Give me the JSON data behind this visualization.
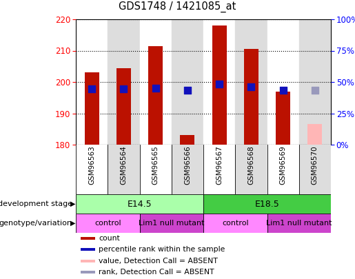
{
  "title": "GDS1748 / 1421085_at",
  "samples": [
    "GSM96563",
    "GSM96564",
    "GSM96565",
    "GSM96566",
    "GSM96567",
    "GSM96568",
    "GSM96569",
    "GSM96570"
  ],
  "count_values": [
    203.0,
    204.5,
    211.5,
    183.0,
    218.0,
    210.5,
    197.0,
    null
  ],
  "rank_values": [
    44.5,
    44.5,
    45.0,
    43.5,
    48.5,
    46.0,
    43.5,
    null
  ],
  "absent_count": [
    null,
    null,
    null,
    null,
    null,
    null,
    null,
    186.5
  ],
  "absent_rank": [
    null,
    null,
    null,
    null,
    null,
    null,
    null,
    43.5
  ],
  "ylim_left": [
    180,
    220
  ],
  "ylim_right": [
    0,
    100
  ],
  "yticks_left": [
    180,
    190,
    200,
    210,
    220
  ],
  "yticks_right": [
    0,
    25,
    50,
    75,
    100
  ],
  "ytick_labels_right": [
    "0%",
    "25%",
    "50%",
    "75%",
    "100%"
  ],
  "bar_color": "#BB1100",
  "absent_bar_color": "#FFB6B6",
  "rank_color": "#1111BB",
  "absent_rank_color": "#9999BB",
  "dev_stage_groups": [
    {
      "label": "E14.5",
      "start": 0,
      "end": 3,
      "color": "#AAFFAA"
    },
    {
      "label": "E18.5",
      "start": 4,
      "end": 7,
      "color": "#44CC44"
    }
  ],
  "geno_groups": [
    {
      "label": "control",
      "start": 0,
      "end": 1,
      "color": "#FF88FF"
    },
    {
      "label": "Lim1 null mutant",
      "start": 2,
      "end": 3,
      "color": "#CC44CC"
    },
    {
      "label": "control",
      "start": 4,
      "end": 5,
      "color": "#FF88FF"
    },
    {
      "label": "Lim1 null mutant",
      "start": 6,
      "end": 7,
      "color": "#CC44CC"
    }
  ],
  "legend_items": [
    {
      "label": "count",
      "color": "#BB1100"
    },
    {
      "label": "percentile rank within the sample",
      "color": "#1111BB"
    },
    {
      "label": "value, Detection Call = ABSENT",
      "color": "#FFB6B6"
    },
    {
      "label": "rank, Detection Call = ABSENT",
      "color": "#9999BB"
    }
  ],
  "dev_stage_label": "development stage",
  "geno_label": "genotype/variation",
  "col_bg_even": "#FFFFFF",
  "col_bg_odd": "#DDDDDD",
  "bar_width": 0.45,
  "rank_marker_size": 45
}
